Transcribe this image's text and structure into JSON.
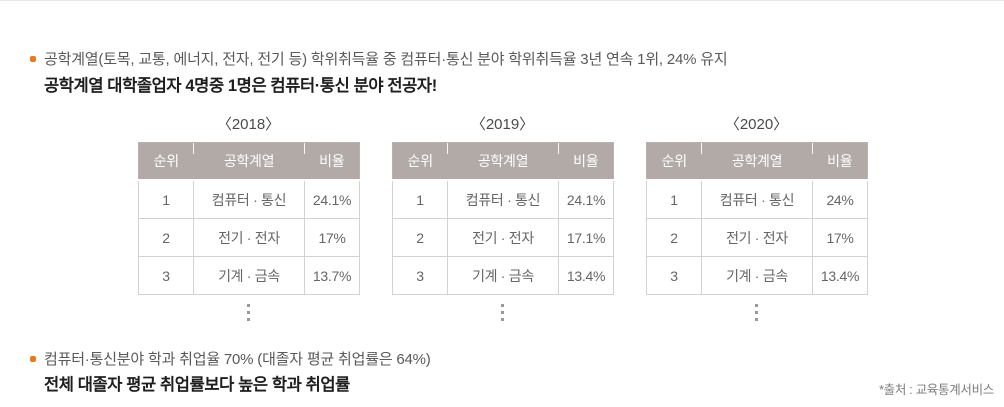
{
  "intro": {
    "line": "공학계열(토목, 교통, 에너지, 전자, 전기 등) 학위취득율 중 컴퓨터·통신 분야 학위취득율 3년 연속 1위, 24% 유지",
    "bold_line": "공학계열 대학졸업자 4명중 1명은 컴퓨터·통신 분야 전공자!"
  },
  "tables": [
    {
      "title": "〈2018〉",
      "headers": [
        "순위",
        "공학계열",
        "비율"
      ],
      "rows": [
        [
          "1",
          "컴퓨터 · 통신",
          "24.1%"
        ],
        [
          "2",
          "전기 · 전자",
          "17%"
        ],
        [
          "3",
          "기계 · 금속",
          "13.7%"
        ]
      ]
    },
    {
      "title": "〈2019〉",
      "headers": [
        "순위",
        "공학계열",
        "비율"
      ],
      "rows": [
        [
          "1",
          "컴퓨터 · 통신",
          "24.1%"
        ],
        [
          "2",
          "전기 · 전자",
          "17.1%"
        ],
        [
          "3",
          "기계 · 금속",
          "13.4%"
        ]
      ]
    },
    {
      "title": "〈2020〉",
      "headers": [
        "순위",
        "공학계열",
        "비율"
      ],
      "rows": [
        [
          "1",
          "컴퓨터 · 통신",
          "24%"
        ],
        [
          "2",
          "전기 · 전자",
          "17%"
        ],
        [
          "3",
          "기계 · 금속",
          "13.4%"
        ]
      ]
    }
  ],
  "employment": {
    "line": "컴퓨터·통신분야 학과 취업율 70% (대졸자 평균 취업률은 64%)",
    "bold_line": "전체 대졸자 평균 취업률보다 높은 학과 취업률"
  },
  "footnote": "*출처 : 교육통계서비스",
  "colors": {
    "bullet_accent": "#e87b1e",
    "table_header_bg": "#b1aaa6",
    "table_outer_border": "#b9b3af",
    "table_inner_border": "#d5d1ce"
  }
}
